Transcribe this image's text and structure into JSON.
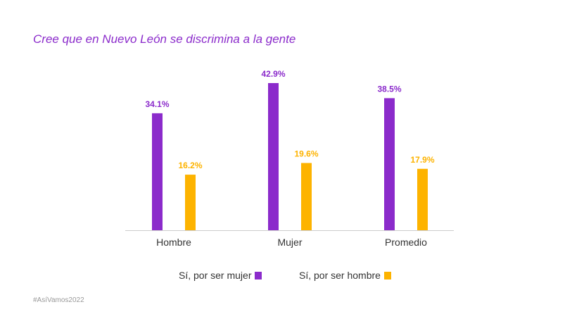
{
  "chart_data": {
    "type": "bar",
    "title": "Cree que en Nuevo León se discrimina a la gente",
    "categories": [
      "Hombre",
      "Mujer",
      "Promedio"
    ],
    "series": [
      {
        "name": "Sí, por ser mujer",
        "color": "#8b2bcb",
        "values": [
          34.1,
          42.9,
          38.5
        ],
        "labels": [
          "34.1%",
          "42.9%",
          "38.5%"
        ]
      },
      {
        "name": "Sí, por ser hombre",
        "color": "#fdb300",
        "values": [
          16.2,
          19.6,
          17.9
        ],
        "labels": [
          "16.2%",
          "19.6%",
          "17.9%"
        ]
      }
    ],
    "ylim": [
      0,
      45
    ],
    "grid": false,
    "legend": "bottom"
  },
  "footer": "#AsíVamos2022"
}
